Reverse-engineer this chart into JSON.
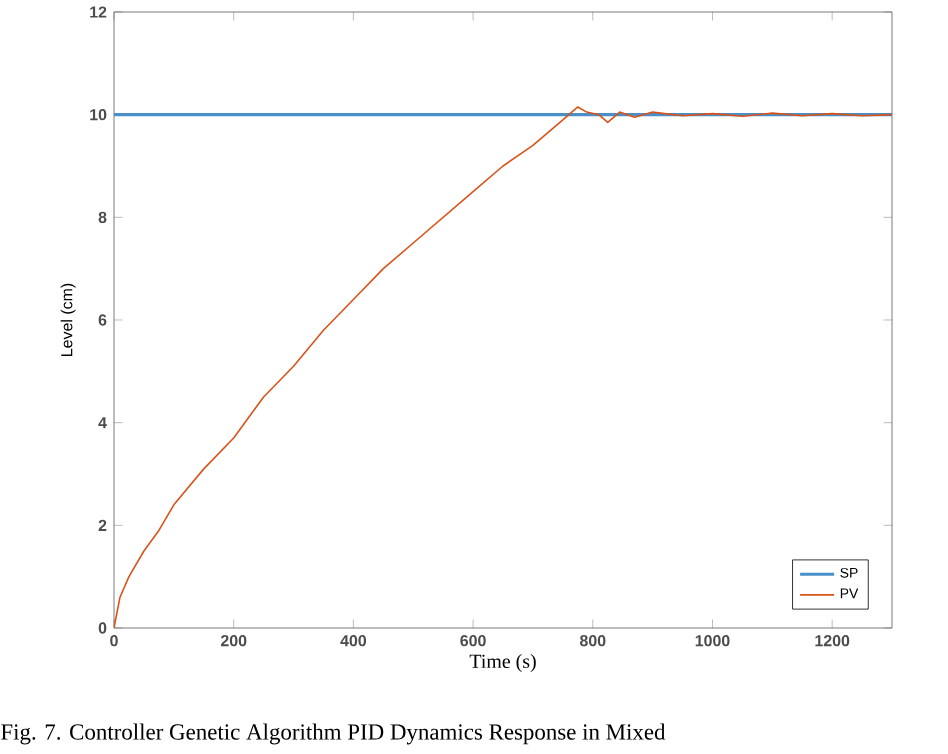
{
  "chart_data": {
    "type": "line",
    "xlabel": "Time (s)",
    "ylabel": "Level (cm)",
    "annotations": [
      "Fig. 7. Controller Genetic Algorithm PID Dynamics Response in Mixed"
    ],
    "xlim": [
      0,
      1300
    ],
    "xticks": [
      0,
      200,
      400,
      600,
      800,
      1000,
      1200
    ],
    "ylim": [
      0,
      12
    ],
    "yticks": [
      0,
      2,
      4,
      6,
      8,
      10,
      12
    ],
    "legend": "bottom right",
    "grid": false,
    "series": [
      {
        "name": "SP",
        "color": "#4a90c8",
        "x": [
          0,
          1300
        ],
        "values": [
          10,
          10
        ]
      },
      {
        "name": "PV",
        "color": "#d95319",
        "x": [
          0,
          10,
          25,
          50,
          75,
          100,
          150,
          200,
          250,
          300,
          350,
          400,
          450,
          500,
          550,
          600,
          650,
          700,
          750,
          775,
          790,
          810,
          825,
          845,
          870,
          900,
          950,
          1000,
          1050,
          1100,
          1150,
          1200,
          1250,
          1300
        ],
        "values": [
          0,
          0.6,
          1.0,
          1.5,
          1.9,
          2.4,
          3.1,
          3.7,
          4.5,
          5.1,
          5.8,
          6.4,
          7.0,
          7.5,
          8.0,
          8.5,
          9.0,
          9.4,
          9.9,
          10.15,
          10.05,
          10.0,
          9.85,
          10.05,
          9.95,
          10.05,
          9.98,
          10.02,
          9.97,
          10.03,
          9.98,
          10.02,
          9.98,
          10.0
        ]
      }
    ]
  }
}
